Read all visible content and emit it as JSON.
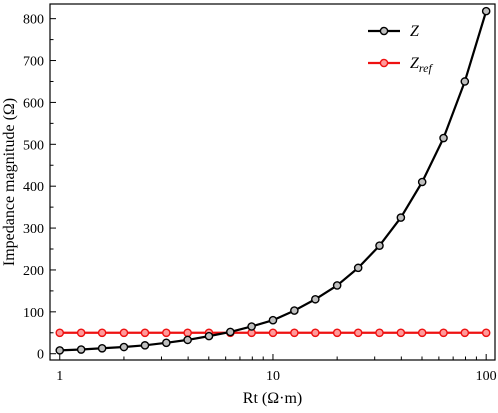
{
  "chart_data": {
    "type": "line",
    "xlabel": "Rt (Ω·m)",
    "ylabel": "Impedance magnitude (Ω)",
    "xscale": "log",
    "xlim": [
      0.9,
      110
    ],
    "ylim": [
      -15,
      835
    ],
    "x_ticks": [
      1,
      10,
      100
    ],
    "x_tick_labels": [
      "1",
      "10",
      "100"
    ],
    "y_ticks": [
      0,
      100,
      200,
      300,
      400,
      500,
      600,
      700,
      800
    ],
    "y_tick_labels": [
      "0",
      "100",
      "200",
      "300",
      "400",
      "500",
      "600",
      "700",
      "800"
    ],
    "grid": false,
    "legend_position": "top-right",
    "x": [
      1.0,
      1.26,
      1.58,
      2.0,
      2.51,
      3.16,
      3.98,
      5.01,
      6.31,
      7.94,
      10.0,
      12.6,
      15.8,
      20.0,
      25.1,
      31.6,
      39.8,
      50.1,
      63.1,
      79.4,
      100.0
    ],
    "series": [
      {
        "name": "Z",
        "color": "#000000",
        "values": [
          8,
          10,
          13,
          16,
          20,
          26,
          33,
          42,
          52,
          65,
          80,
          103,
          130,
          163,
          205,
          258,
          325,
          410,
          515,
          650,
          818
        ]
      },
      {
        "name": "Zref",
        "label_main": "Z",
        "label_sub": "ref",
        "color": "#ee1111",
        "values": [
          50,
          50,
          50,
          50,
          50,
          50,
          50,
          50,
          50,
          50,
          50,
          50,
          50,
          50,
          50,
          50,
          50,
          50,
          50,
          50,
          50
        ]
      }
    ]
  }
}
